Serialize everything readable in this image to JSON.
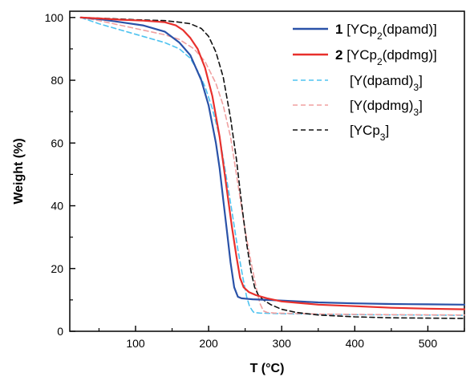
{
  "chart_data": {
    "type": "line",
    "xlabel": "T (°C)",
    "ylabel": "Weight (%)",
    "xlim": [
      10,
      550
    ],
    "ylim": [
      0,
      102
    ],
    "xticks": [
      100,
      200,
      300,
      400,
      500
    ],
    "yticks": [
      0,
      20,
      40,
      60,
      80,
      100
    ],
    "xtick_labels": [
      "100",
      "200",
      "300",
      "400",
      "500"
    ],
    "ytick_labels": [
      "0",
      "20",
      "40",
      "60",
      "80",
      "100"
    ],
    "grid": false,
    "legend_position": "top-right",
    "series": [
      {
        "name": "1 [YCp2(dpamd)]",
        "legend_bold": "1",
        "legend_parts": [
          {
            "t": " [YCp"
          },
          {
            "t": "2",
            "sub": true
          },
          {
            "t": "(dpamd)]"
          }
        ],
        "color": "#2a52a8",
        "style": "solid",
        "x": [
          25,
          50,
          80,
          110,
          140,
          160,
          175,
          190,
          200,
          210,
          215,
          220,
          225,
          230,
          235,
          240,
          245,
          250,
          260,
          280,
          300,
          350,
          400,
          450,
          500,
          550
        ],
        "y": [
          100,
          99.5,
          98.5,
          97.5,
          95.5,
          92,
          88,
          80,
          72,
          60,
          52,
          42,
          32,
          22,
          14,
          11,
          10.5,
          10.4,
          10.2,
          10,
          9.8,
          9.2,
          8.9,
          8.7,
          8.6,
          8.5
        ]
      },
      {
        "name": "2 [YCp2(dpdmg)]",
        "legend_bold": "2",
        "legend_parts": [
          {
            "t": " [YCp"
          },
          {
            "t": "2",
            "sub": true
          },
          {
            "t": "(dpdmg)]"
          }
        ],
        "color": "#e8302c",
        "style": "solid",
        "x": [
          25,
          50,
          80,
          110,
          140,
          155,
          165,
          175,
          185,
          195,
          205,
          215,
          225,
          232,
          238,
          243,
          248,
          255,
          265,
          280,
          300,
          350,
          400,
          450,
          500,
          550
        ],
        "y": [
          100,
          99.7,
          99.3,
          99,
          98.5,
          97.5,
          96,
          93.5,
          90,
          84,
          75,
          62,
          45,
          33,
          24,
          17,
          14,
          12.5,
          11.5,
          10.5,
          9.5,
          8.5,
          8,
          7.5,
          7.2,
          7
        ]
      },
      {
        "name": "[Y(dpamd)3]",
        "legend_parts": [
          {
            "t": "[Y(dpamd)"
          },
          {
            "t": "3",
            "sub": true
          },
          {
            "t": "]"
          }
        ],
        "color": "#4fc3f0",
        "style": "dashed",
        "x": [
          25,
          50,
          80,
          110,
          140,
          160,
          175,
          185,
          195,
          205,
          215,
          225,
          232,
          240,
          247,
          252,
          256,
          260,
          262,
          270,
          300,
          400,
          550
        ],
        "y": [
          100,
          98,
          96,
          94,
          92,
          90,
          87,
          83,
          78,
          71,
          62,
          48,
          38,
          26,
          17,
          11,
          8,
          6.5,
          6,
          5.8,
          5.6,
          5.3,
          5.1
        ]
      },
      {
        "name": "[Y(dpdmg)3]",
        "legend_parts": [
          {
            "t": "[Y(dpdmg)"
          },
          {
            "t": "3",
            "sub": true
          },
          {
            "t": "]"
          }
        ],
        "color": "#f0a0a0",
        "style": "dashed",
        "x": [
          25,
          50,
          80,
          110,
          140,
          160,
          180,
          195,
          210,
          220,
          230,
          240,
          250,
          258,
          265,
          270,
          275,
          280,
          290,
          350,
          450,
          550
        ],
        "y": [
          100,
          99,
          97.5,
          96,
          94.5,
          93,
          90,
          86,
          79,
          72,
          62,
          47,
          32,
          22,
          14,
          9,
          6.5,
          6,
          5.8,
          5.5,
          5.3,
          5.2
        ]
      },
      {
        "name": "[YCp3]",
        "legend_parts": [
          {
            "t": "[YCp"
          },
          {
            "t": "3",
            "sub": true
          },
          {
            "t": "]"
          }
        ],
        "color": "#111111",
        "style": "dashed",
        "x": [
          25,
          60,
          100,
          140,
          160,
          175,
          190,
          200,
          210,
          220,
          230,
          238,
          245,
          252,
          258,
          263,
          268,
          275,
          285,
          300,
          320,
          350,
          400,
          450,
          500,
          550
        ],
        "y": [
          100,
          99.7,
          99.3,
          99,
          98.5,
          98,
          96.5,
          94,
          89,
          81,
          68,
          55,
          41,
          28,
          19,
          14,
          11.5,
          10,
          8.5,
          7,
          6,
          5.2,
          4.6,
          4.3,
          4.2,
          4.1
        ]
      }
    ]
  }
}
